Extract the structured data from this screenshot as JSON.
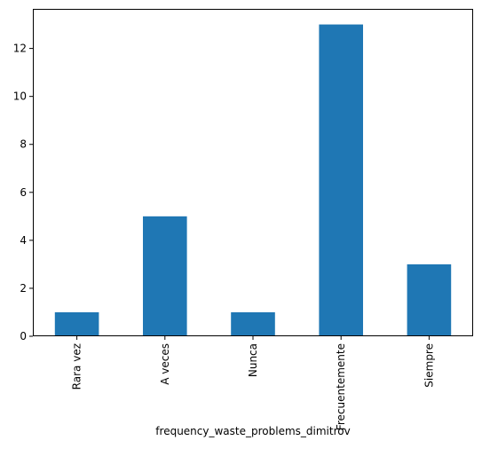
{
  "chart_data": {
    "type": "bar",
    "categories": [
      "Rara vez",
      "A veces",
      "Nunca",
      "Frecuentemente",
      "Siempre"
    ],
    "values": [
      1,
      5,
      1,
      13,
      3
    ],
    "title": "",
    "xlabel": "frequency_waste_problems_dimitrov",
    "ylabel": "",
    "ylim": [
      0,
      13.65
    ],
    "yticks": [
      0,
      2,
      4,
      6,
      8,
      10,
      12
    ],
    "grid": false,
    "legend": "none",
    "bar_color": "#1f77b4"
  }
}
